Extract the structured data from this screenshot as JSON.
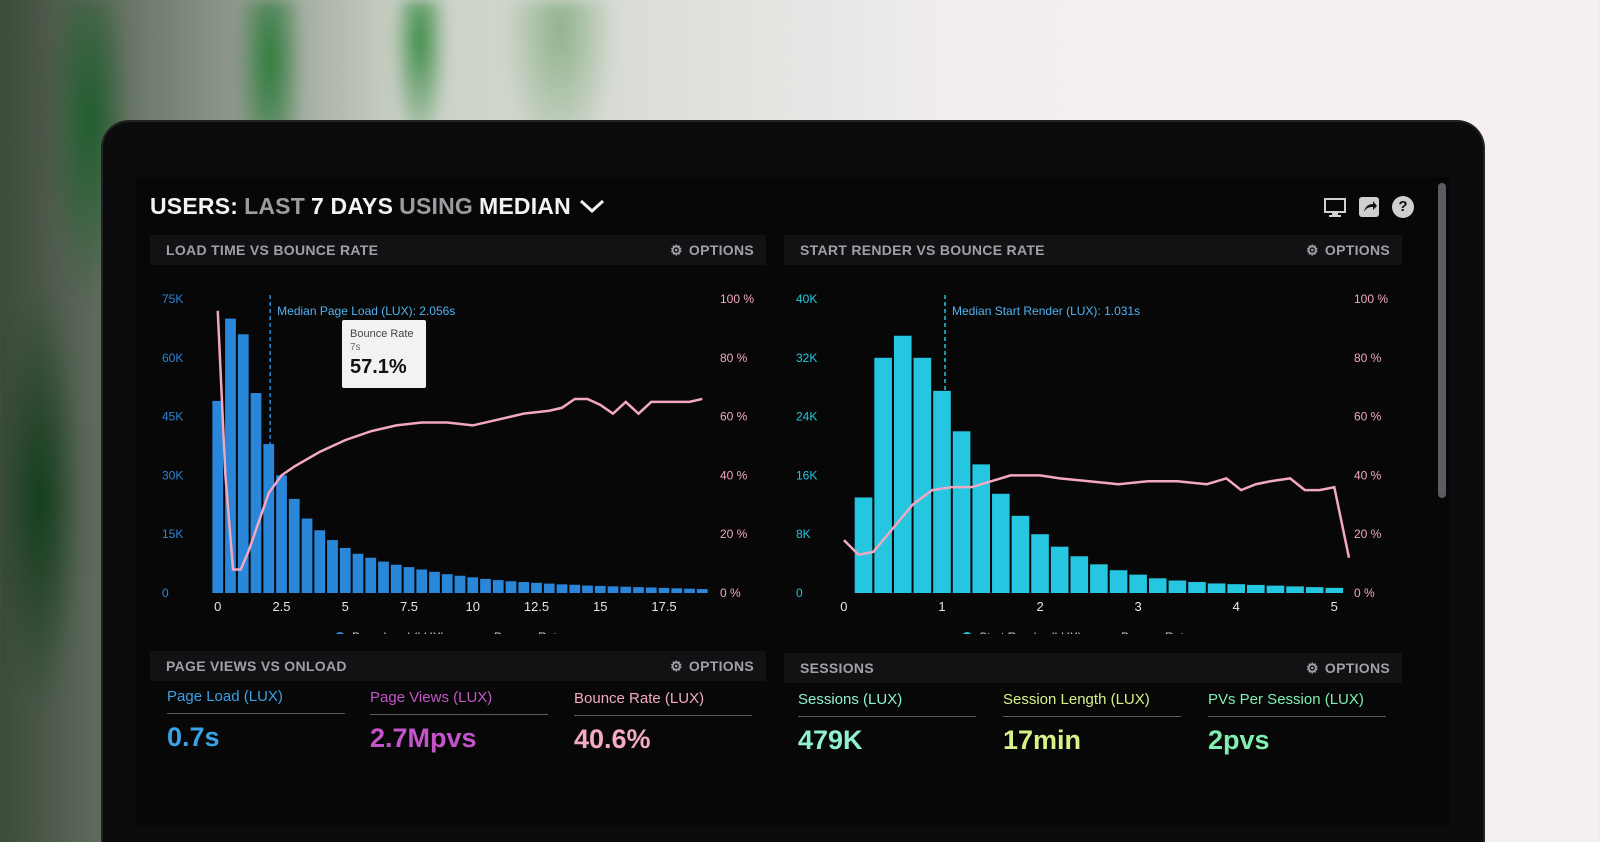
{
  "header": {
    "users": "USERS:",
    "range": "LAST",
    "days": "7 DAYS",
    "using": "USING",
    "median": "MEDIAN"
  },
  "icons": [
    "monitor-icon",
    "share-icon",
    "help-icon"
  ],
  "panels": {
    "load": {
      "title": "LOAD TIME VS BOUNCE RATE",
      "options": "OPTIONS",
      "median_label": "Median Page Load (LUX): 2.056s",
      "tooltip": {
        "title": "Bounce Rate",
        "sub": "7s",
        "value": "57.1%"
      },
      "legend": [
        "Page Load (LUX)",
        "Bounce Rate"
      ]
    },
    "render": {
      "title": "START RENDER VS BOUNCE RATE",
      "options": "OPTIONS",
      "median_label": "Median Start Render (LUX): 1.031s",
      "legend": [
        "Start Render (LUX)",
        "Bounce Rate"
      ]
    },
    "pageviews": {
      "title": "PAGE VIEWS VS ONLOAD",
      "options": "OPTIONS",
      "metrics": [
        {
          "label": "Page Load (LUX)",
          "value": "0.7s",
          "color": "#3aa3e8"
        },
        {
          "label": "Page Views (LUX)",
          "value": "2.7Mpvs",
          "color": "#c455c8"
        },
        {
          "label": "Bounce Rate (LUX)",
          "value": "40.6%",
          "color": "#f5a9c4"
        }
      ]
    },
    "sessions": {
      "title": "SESSIONS",
      "options": "OPTIONS",
      "metrics": [
        {
          "label": "Sessions (LUX)",
          "value": "479K",
          "color": "#8ff0d2"
        },
        {
          "label": "Session Length (LUX)",
          "value": "17min",
          "color": "#d8f28a"
        },
        {
          "label": "PVs Per Session (LUX)",
          "value": "2pvs",
          "color": "#7ff0b0"
        }
      ]
    }
  },
  "chart_data": [
    {
      "type": "bar",
      "title": "LOAD TIME VS BOUNCE RATE",
      "x_ticks": [
        "0",
        "2.5",
        "5",
        "7.5",
        "10",
        "12.5",
        "15",
        "17.5"
      ],
      "y_ticks": [
        "0",
        "15K",
        "30K",
        "45K",
        "60K",
        "75K"
      ],
      "y2_ticks": [
        "0 %",
        "20 %",
        "40 %",
        "60 %",
        "80 %",
        "100 %"
      ],
      "xlim": [
        -0.5,
        19.5
      ],
      "ylim": [
        0,
        75000
      ],
      "y2lim": [
        0,
        100
      ],
      "median_x": 2.056,
      "bar_color": "#2a86d9",
      "line_color": "#f2a7c3",
      "series": [
        {
          "name": "Page Load (LUX)",
          "x": [
            0,
            0.5,
            1,
            1.5,
            2,
            2.5,
            3,
            3.5,
            4,
            4.5,
            5,
            5.5,
            6,
            6.5,
            7,
            7.5,
            8,
            8.5,
            9,
            9.5,
            10,
            10.5,
            11,
            11.5,
            12,
            12.5,
            13,
            13.5,
            14,
            14.5,
            15,
            15.5,
            16,
            16.5,
            17,
            17.5,
            18,
            18.5,
            19
          ],
          "values": [
            49000,
            70000,
            66000,
            51000,
            38000,
            30000,
            24000,
            19000,
            16000,
            13500,
            11500,
            10000,
            9000,
            8000,
            7200,
            6600,
            6000,
            5400,
            4800,
            4400,
            4000,
            3600,
            3300,
            3000,
            2800,
            2600,
            2400,
            2200,
            2100,
            1900,
            1800,
            1700,
            1600,
            1500,
            1400,
            1300,
            1200,
            1100,
            1000
          ]
        },
        {
          "name": "Bounce Rate",
          "x": [
            0,
            0.3,
            0.6,
            0.9,
            1.2,
            1.6,
            2,
            2.5,
            3,
            4,
            5,
            6,
            7,
            8,
            9,
            10,
            11,
            12,
            13,
            13.5,
            14,
            14.5,
            15,
            15.5,
            16,
            16.5,
            17,
            17.5,
            18,
            18.5,
            19
          ],
          "values": [
            96,
            40,
            8,
            8,
            14,
            24,
            34,
            40,
            43,
            48,
            52,
            55,
            57,
            58,
            58,
            57,
            59,
            61,
            62,
            63,
            66,
            66,
            64,
            61,
            65,
            61,
            65,
            65,
            65,
            65,
            66
          ]
        }
      ]
    },
    {
      "type": "bar",
      "title": "START RENDER VS BOUNCE RATE",
      "x_ticks": [
        "0",
        "1",
        "2",
        "3",
        "4",
        "5"
      ],
      "y_ticks": [
        "0",
        "8K",
        "16K",
        "24K",
        "32K",
        "40K"
      ],
      "y2_ticks": [
        "0 %",
        "20 %",
        "40 %",
        "60 %",
        "80 %",
        "100 %"
      ],
      "xlim": [
        -0.05,
        5.15
      ],
      "ylim": [
        0,
        40000
      ],
      "y2lim": [
        0,
        100
      ],
      "median_x": 1.031,
      "bar_color": "#24c6e0",
      "line_color": "#f2a7c3",
      "series": [
        {
          "name": "Start Render (LUX)",
          "x": [
            0.2,
            0.4,
            0.6,
            0.8,
            1,
            1.2,
            1.4,
            1.6,
            1.8,
            2,
            2.2,
            2.4,
            2.6,
            2.8,
            3,
            3.2,
            3.4,
            3.6,
            3.8,
            4,
            4.2,
            4.4,
            4.6,
            4.8,
            5
          ],
          "values": [
            13000,
            32000,
            35000,
            32000,
            27500,
            22000,
            17500,
            13500,
            10500,
            8000,
            6300,
            5000,
            3900,
            3100,
            2500,
            2000,
            1700,
            1500,
            1300,
            1200,
            1100,
            1000,
            900,
            800,
            700
          ]
        },
        {
          "name": "Bounce Rate",
          "x": [
            0,
            0.15,
            0.3,
            0.5,
            0.7,
            0.9,
            1.1,
            1.3,
            1.5,
            1.7,
            2,
            2.2,
            2.5,
            2.8,
            3.1,
            3.4,
            3.7,
            3.9,
            4.05,
            4.2,
            4.35,
            4.55,
            4.7,
            4.85,
            5,
            5.15
          ],
          "values": [
            18,
            13,
            14,
            22,
            30,
            35,
            36,
            36,
            38,
            40,
            40,
            39,
            38,
            37,
            38,
            38,
            37,
            39,
            35,
            37,
            38,
            39,
            35,
            35,
            36,
            12
          ]
        }
      ]
    }
  ]
}
